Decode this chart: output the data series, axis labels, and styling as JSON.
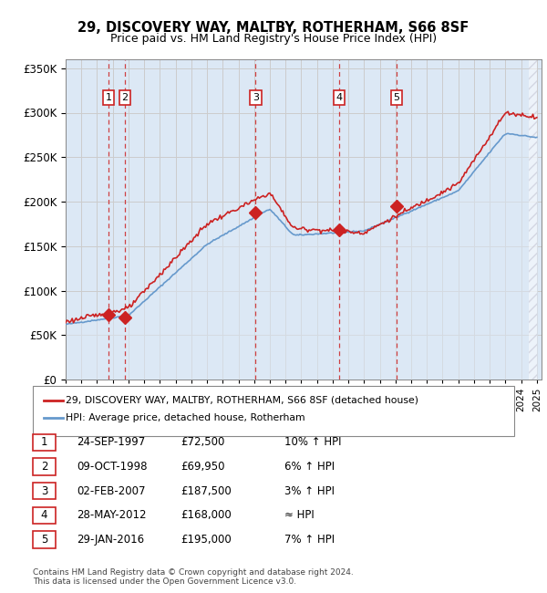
{
  "title": "29, DISCOVERY WAY, MALTBY, ROTHERHAM, S66 8SF",
  "subtitle": "Price paid vs. HM Land Registry's House Price Index (HPI)",
  "legend_line1": "29, DISCOVERY WAY, MALTBY, ROTHERHAM, S66 8SF (detached house)",
  "legend_line2": "HPI: Average price, detached house, Rotherham",
  "footer1": "Contains HM Land Registry data © Crown copyright and database right 2024.",
  "footer2": "This data is licensed under the Open Government Licence v3.0.",
  "sales": [
    {
      "num": 1,
      "date_label": "24-SEP-1997",
      "price_label": "£72,500",
      "relation": "10% ↑ HPI",
      "year": 1997.73,
      "price": 72500
    },
    {
      "num": 2,
      "date_label": "09-OCT-1998",
      "price_label": "£69,950",
      "relation": "6% ↑ HPI",
      "year": 1998.77,
      "price": 69950
    },
    {
      "num": 3,
      "date_label": "02-FEB-2007",
      "price_label": "£187,500",
      "relation": "3% ↑ HPI",
      "year": 2007.09,
      "price": 187500
    },
    {
      "num": 4,
      "date_label": "28-MAY-2012",
      "price_label": "£168,000",
      "relation": "≈ HPI",
      "year": 2012.41,
      "price": 168000
    },
    {
      "num": 5,
      "date_label": "29-JAN-2016",
      "price_label": "£195,000",
      "relation": "7% ↑ HPI",
      "year": 2016.08,
      "price": 195000
    }
  ],
  "hpi_color": "#6699cc",
  "hpi_fill": "#dce8f5",
  "price_color": "#cc2222",
  "vline_color": "#cc2222",
  "grid_color": "#cccccc",
  "bg_color": "#dce8f5",
  "hatch_color": "#bbbbcc",
  "ylim": [
    0,
    360000
  ],
  "xlim_start": 1995.0,
  "xlim_end": 2025.3,
  "hatch_start": 2024.5
}
